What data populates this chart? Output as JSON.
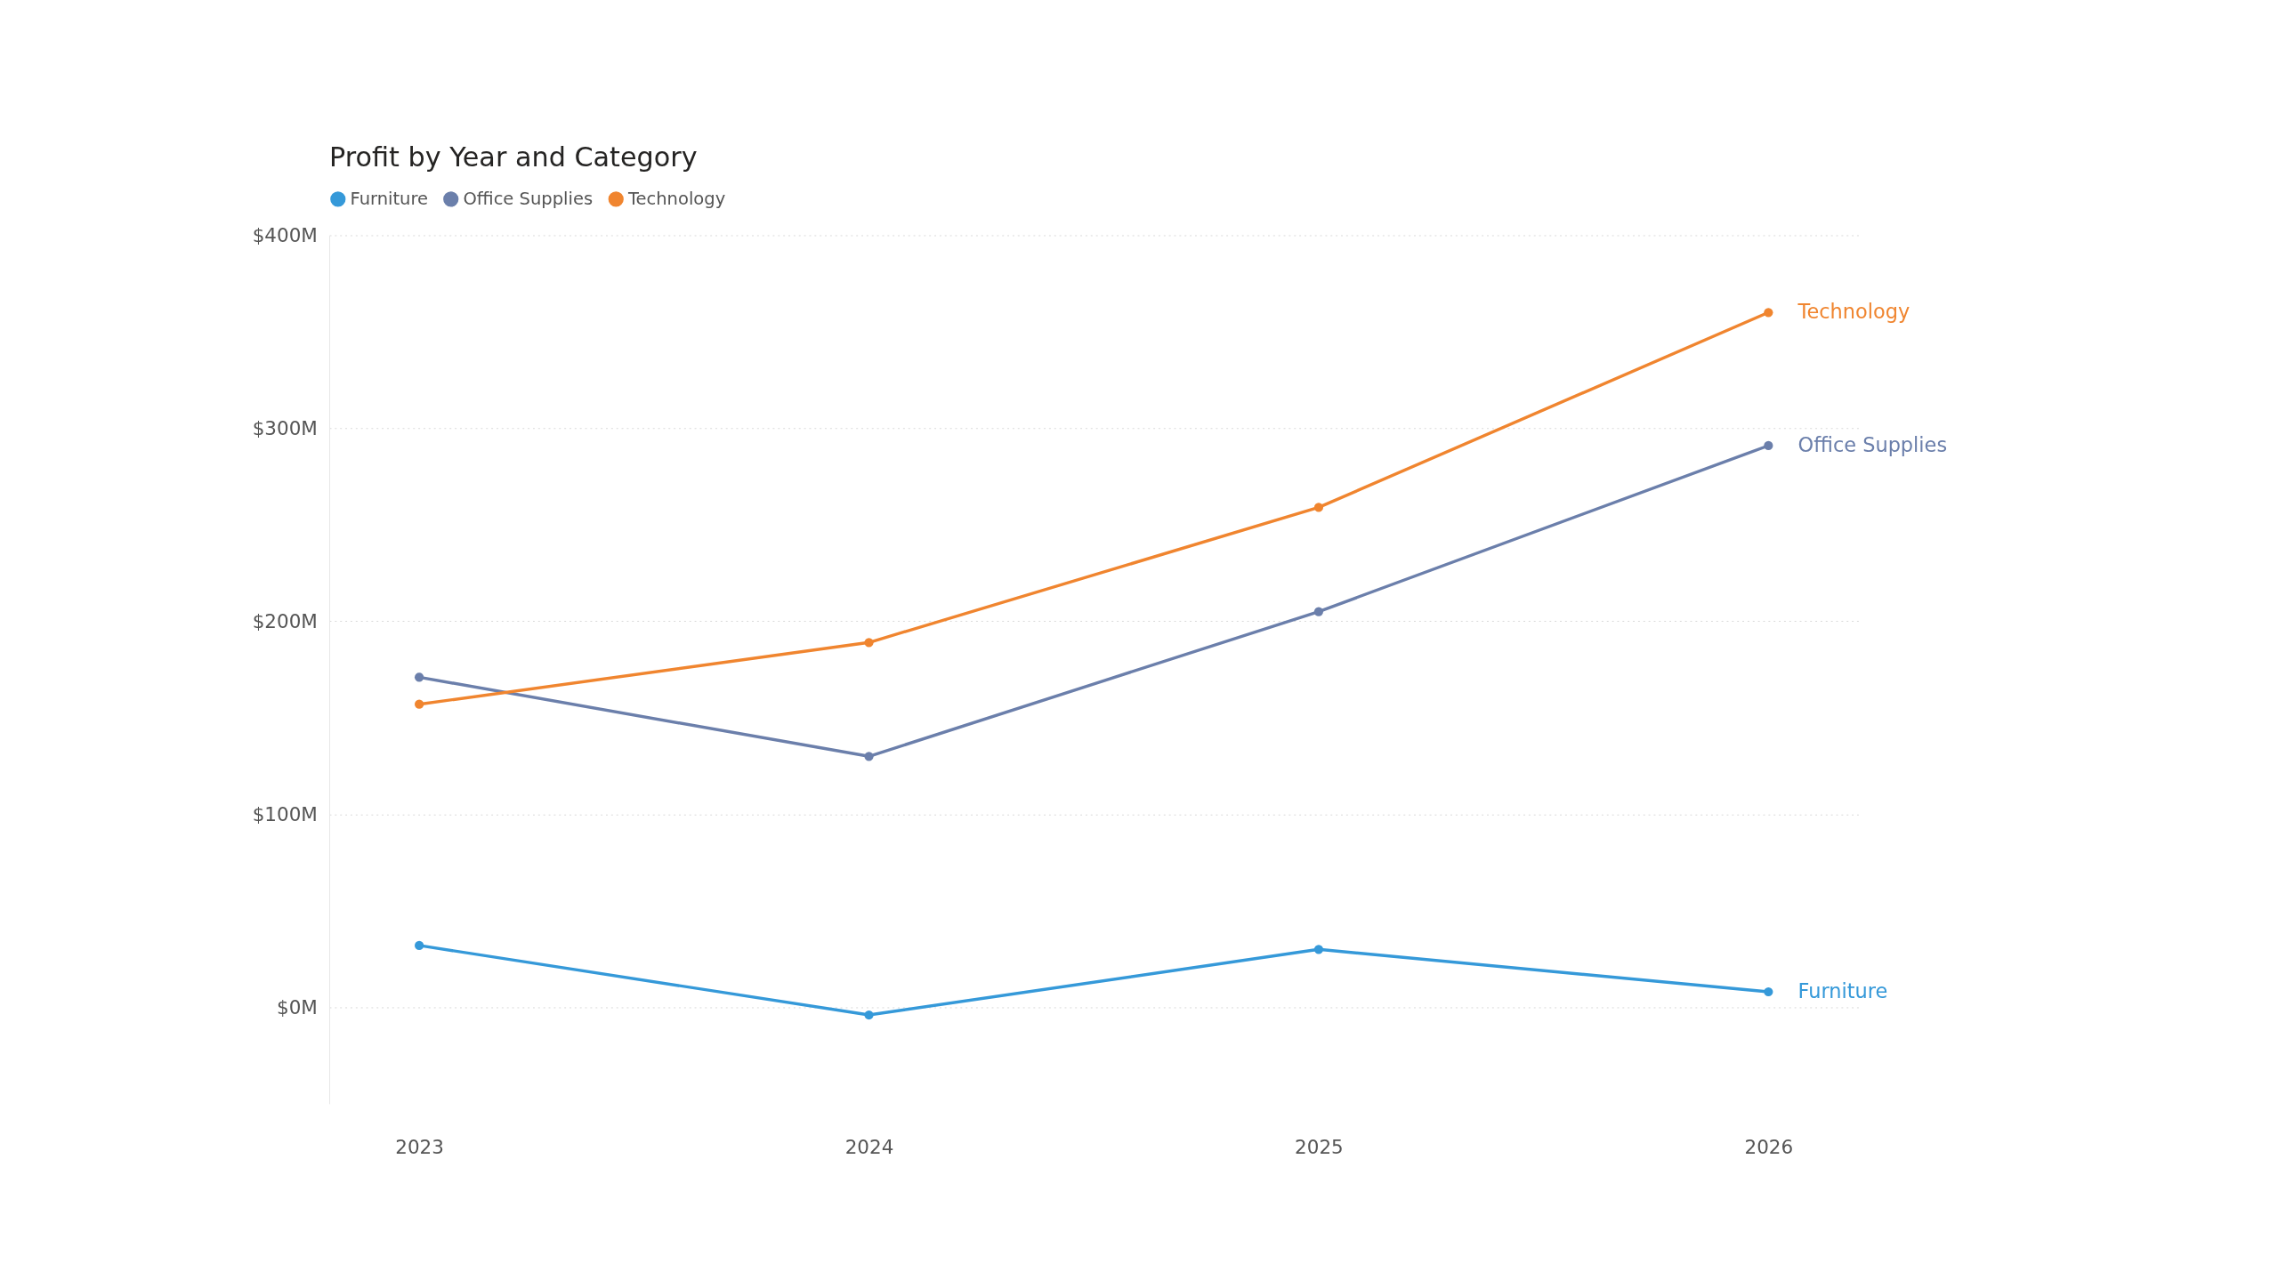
{
  "chart_data": {
    "type": "line",
    "title": "Profit by Year and Category",
    "categories": [
      "2023",
      "2024",
      "2025",
      "2026"
    ],
    "series": [
      {
        "name": "Furniture",
        "color": "#3599d9",
        "values": [
          32,
          -4,
          30,
          8
        ]
      },
      {
        "name": "Office Supplies",
        "color": "#6b7fab",
        "values": [
          171,
          130,
          205,
          291
        ]
      },
      {
        "name": "Technology",
        "color": "#f0852f",
        "values": [
          157,
          189,
          259,
          360
        ]
      }
    ],
    "ylim": [
      -50,
      400
    ],
    "yticks": [
      {
        "value": 0,
        "label": "$0M"
      },
      {
        "value": 100,
        "label": "$100M"
      },
      {
        "value": 200,
        "label": "$200M"
      },
      {
        "value": 300,
        "label": "$300M"
      },
      {
        "value": 400,
        "label": "$400M"
      }
    ],
    "grid": "y",
    "legend": "top left",
    "marker": "circle",
    "line_style": "solid"
  }
}
